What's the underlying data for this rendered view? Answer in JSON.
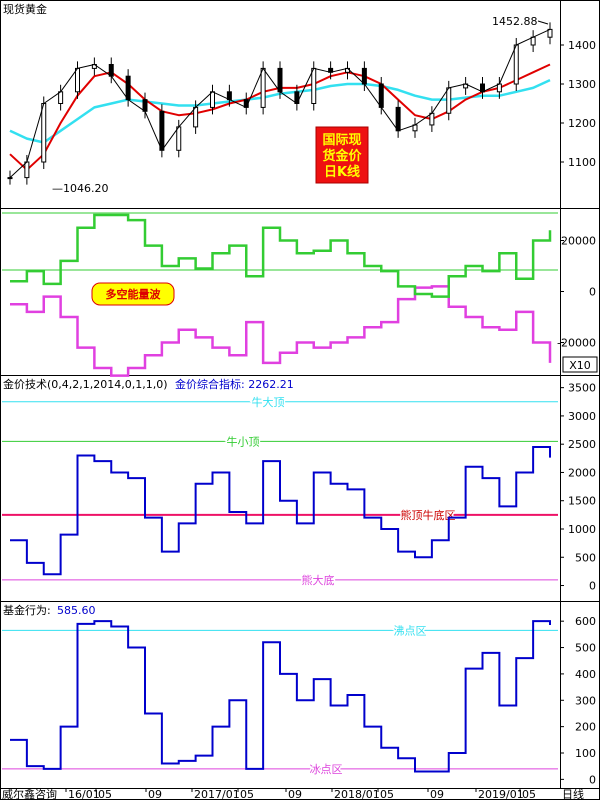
{
  "colors": {
    "background": "#ffffff",
    "candle": "#000000",
    "ma_red": "#e00000",
    "ma_cyan": "#33e0f0",
    "bull_green": "#33cc33",
    "bear_magenta": "#e040e0",
    "blue_line": "#0000cc",
    "stamp_red": "#ee1111",
    "stamp_text": "#ffff00",
    "level_green": "#33cc33",
    "level_cyan": "#33e0f0",
    "level_red": "#ee1166",
    "level_magenta": "#dd44dd"
  },
  "panel1": {
    "title": "现货黄金",
    "high_label": "1452.88",
    "low_label": "1046.20",
    "stamp_lines": [
      "国际现",
      "货金价",
      "日K线"
    ],
    "ticks": [
      "1400",
      "1300",
      "1200",
      "1100"
    ]
  },
  "panel2": {
    "badge": "多空能量波",
    "ticks": [
      "20000",
      "0",
      "-20000"
    ],
    "multiplier": "X10"
  },
  "panel3": {
    "header": "金价技术(0,4,2,1,2014,0,1,1,0)",
    "indicator_label": "金价综合指标:",
    "indicator_value": "2262.21",
    "ticks": [
      "3500",
      "3000",
      "2500",
      "2000",
      "1500",
      "1000",
      "500",
      "0"
    ],
    "level_labels": {
      "big_bull_top": "牛大顶",
      "small_bull_top": "牛小顶",
      "bear_top_bull_bottom": "熊顶牛底区",
      "big_bear_bottom": "熊大底"
    }
  },
  "panel4": {
    "header_label": "基金行为:",
    "header_value": "585.60",
    "ticks": [
      "600",
      "500",
      "400",
      "300",
      "200",
      "100",
      "0"
    ],
    "level_labels": {
      "boil": "沸点区",
      "freeze": "冰点区"
    }
  },
  "footer": {
    "source": "威尔鑫咨询",
    "axis_labels": [
      "16/01",
      "05",
      "09",
      "2017/01",
      "05",
      "09",
      "2018/01",
      "05",
      "09",
      "2019/01",
      "05"
    ],
    "period": "日线"
  },
  "chart_data": [
    {
      "type": "candlestick",
      "title": "现货黄金",
      "x": [
        "2015/12",
        "2016/01",
        "2016/03",
        "2016/05",
        "2016/07",
        "2016/08",
        "2016/09",
        "2016/10",
        "2016/11",
        "2016/12",
        "2017/01",
        "2017/03",
        "2017/04",
        "2017/06",
        "2017/07",
        "2017/09",
        "2017/10",
        "2017/12",
        "2018/01",
        "2018/03",
        "2018/04",
        "2018/05",
        "2018/07",
        "2018/08",
        "2018/09",
        "2018/11",
        "2019/01",
        "2019/03",
        "2019/04",
        "2019/05",
        "2019/06",
        "2019/07",
        "2019/08"
      ],
      "close": [
        1060,
        1100,
        1250,
        1280,
        1340,
        1350,
        1320,
        1260,
        1230,
        1130,
        1190,
        1240,
        1280,
        1260,
        1240,
        1340,
        1280,
        1250,
        1340,
        1330,
        1340,
        1300,
        1240,
        1180,
        1195,
        1225,
        1290,
        1300,
        1280,
        1300,
        1400,
        1420,
        1440
      ],
      "ma_red": [
        1120,
        1080,
        1120,
        1200,
        1270,
        1320,
        1330,
        1300,
        1260,
        1230,
        1220,
        1225,
        1235,
        1250,
        1260,
        1280,
        1290,
        1290,
        1300,
        1320,
        1330,
        1320,
        1300,
        1260,
        1220,
        1210,
        1230,
        1260,
        1280,
        1290,
        1310,
        1330,
        1350
      ],
      "ma_cyan": [
        1180,
        1160,
        1150,
        1180,
        1210,
        1240,
        1250,
        1260,
        1255,
        1250,
        1245,
        1245,
        1250,
        1255,
        1260,
        1265,
        1275,
        1280,
        1285,
        1295,
        1300,
        1300,
        1295,
        1285,
        1270,
        1260,
        1260,
        1265,
        1270,
        1270,
        1280,
        1290,
        1310
      ],
      "annotations": [
        {
          "text": "1452.88",
          "value": 1452.88
        },
        {
          "text": "1046.20",
          "value": 1046.2
        }
      ],
      "ylim": [
        1000,
        1500
      ]
    },
    {
      "type": "line",
      "name": "多空能量波",
      "x": [
        "2015/12",
        "2016/01",
        "2016/03",
        "2016/05",
        "2016/07",
        "2016/08",
        "2016/09",
        "2016/10",
        "2016/11",
        "2016/12",
        "2017/01",
        "2017/03",
        "2017/04",
        "2017/06",
        "2017/07",
        "2017/09",
        "2017/10",
        "2017/12",
        "2018/01",
        "2018/03",
        "2018/04",
        "2018/05",
        "2018/07",
        "2018/08",
        "2018/09",
        "2018/11",
        "2019/01",
        "2019/03",
        "2019/04",
        "2019/05",
        "2019/06",
        "2019/07",
        "2019/08"
      ],
      "series": [
        {
          "values": [
            4000,
            8000,
            3000,
            12000,
            25000,
            30000,
            30000,
            28000,
            18000,
            10000,
            13000,
            9000,
            15000,
            18000,
            6000,
            25000,
            20000,
            15000,
            16000,
            20000,
            15000,
            10000,
            8000,
            2000,
            -1000,
            -2000,
            6000,
            10000,
            8000,
            15000,
            5000,
            20000,
            24000
          ]
        },
        {
          "values": [
            -5000,
            -8000,
            -2000,
            -10000,
            -22000,
            -30000,
            -33000,
            -30000,
            -25000,
            -20000,
            -15000,
            -18000,
            -22000,
            -25000,
            -12000,
            -28000,
            -24000,
            -20000,
            -22000,
            -20000,
            -18000,
            -14000,
            -12000,
            -3000,
            1500,
            2000,
            -6000,
            -10000,
            -14000,
            -15000,
            -8000,
            -20000,
            -28000
          ]
        }
      ],
      "ylim": [
        -30000,
        30000
      ],
      "multiplier": "X10"
    },
    {
      "type": "line",
      "name": "金价综合指标",
      "x": [
        "2015/12",
        "2016/01",
        "2016/03",
        "2016/05",
        "2016/07",
        "2016/08",
        "2016/09",
        "2016/10",
        "2016/11",
        "2016/12",
        "2017/01",
        "2017/03",
        "2017/04",
        "2017/06",
        "2017/07",
        "2017/09",
        "2017/10",
        "2017/12",
        "2018/01",
        "2018/03",
        "2018/04",
        "2018/05",
        "2018/07",
        "2018/08",
        "2018/09",
        "2018/11",
        "2019/01",
        "2019/03",
        "2019/04",
        "2019/05",
        "2019/06",
        "2019/07",
        "2019/08"
      ],
      "values": [
        800,
        400,
        200,
        900,
        2300,
        2200,
        2000,
        1900,
        1200,
        600,
        1100,
        1800,
        2000,
        1300,
        1100,
        2200,
        1500,
        1100,
        2000,
        1800,
        1700,
        1200,
        1000,
        600,
        500,
        800,
        1200,
        2100,
        1900,
        1400,
        2000,
        2450,
        2262.21
      ],
      "levels": [
        {
          "label": "牛大顶",
          "value": 3250
        },
        {
          "label": "牛小顶",
          "value": 2550
        },
        {
          "label": "熊顶牛底区",
          "value": 1250
        },
        {
          "label": "熊大底",
          "value": 100
        }
      ],
      "ylim": [
        -150,
        3600
      ]
    },
    {
      "type": "line",
      "name": "基金行为",
      "x": [
        "2015/12",
        "2016/01",
        "2016/03",
        "2016/05",
        "2016/07",
        "2016/08",
        "2016/09",
        "2016/10",
        "2016/11",
        "2016/12",
        "2017/01",
        "2017/03",
        "2017/04",
        "2017/06",
        "2017/07",
        "2017/09",
        "2017/10",
        "2017/12",
        "2018/01",
        "2018/03",
        "2018/04",
        "2018/05",
        "2018/07",
        "2018/08",
        "2018/09",
        "2018/11",
        "2019/01",
        "2019/03",
        "2019/04",
        "2019/05",
        "2019/06",
        "2019/07",
        "2019/08"
      ],
      "values": [
        150,
        50,
        40,
        200,
        590,
        600,
        580,
        500,
        250,
        60,
        70,
        90,
        200,
        300,
        40,
        520,
        400,
        300,
        380,
        280,
        320,
        200,
        120,
        80,
        30,
        30,
        100,
        420,
        480,
        280,
        460,
        600,
        585.6
      ],
      "levels": [
        {
          "label": "沸点区",
          "value": 565
        },
        {
          "label": "冰点区",
          "value": 40
        }
      ],
      "ylim": [
        -10,
        650
      ]
    }
  ]
}
